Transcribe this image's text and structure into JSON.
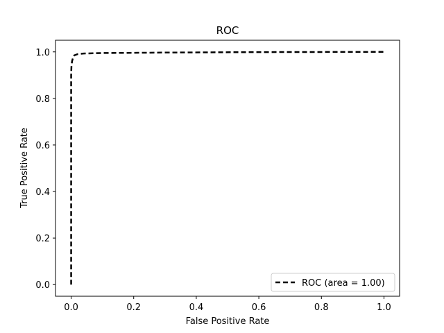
{
  "chart_data": {
    "type": "line",
    "title": "ROC",
    "xlabel": "False Positive Rate",
    "ylabel": "True Positive Rate",
    "xlim": [
      -0.05,
      1.05
    ],
    "ylim": [
      -0.05,
      1.05
    ],
    "xticks": [
      0.0,
      0.2,
      0.4,
      0.6,
      0.8,
      1.0
    ],
    "xtick_labels": [
      "0.0",
      "0.2",
      "0.4",
      "0.6",
      "0.8",
      "1.0"
    ],
    "yticks": [
      0.0,
      0.2,
      0.4,
      0.6,
      0.8,
      1.0
    ],
    "ytick_labels": [
      "0.0",
      "0.2",
      "0.4",
      "0.6",
      "0.8",
      "1.0"
    ],
    "grid": false,
    "legend_position": "lower-right",
    "series": [
      {
        "name": "ROC (area = 1.00)",
        "color": "#000000",
        "line_style": "dashed",
        "x": [
          0.0,
          0.0,
          0.0,
          0.001,
          0.003,
          0.006,
          0.01,
          0.02,
          0.04,
          0.1,
          0.3,
          0.6,
          1.0
        ],
        "y": [
          0.0,
          0.5,
          0.9,
          0.94,
          0.96,
          0.975,
          0.985,
          0.99,
          0.993,
          0.995,
          0.997,
          0.999,
          1.0
        ]
      }
    ]
  }
}
